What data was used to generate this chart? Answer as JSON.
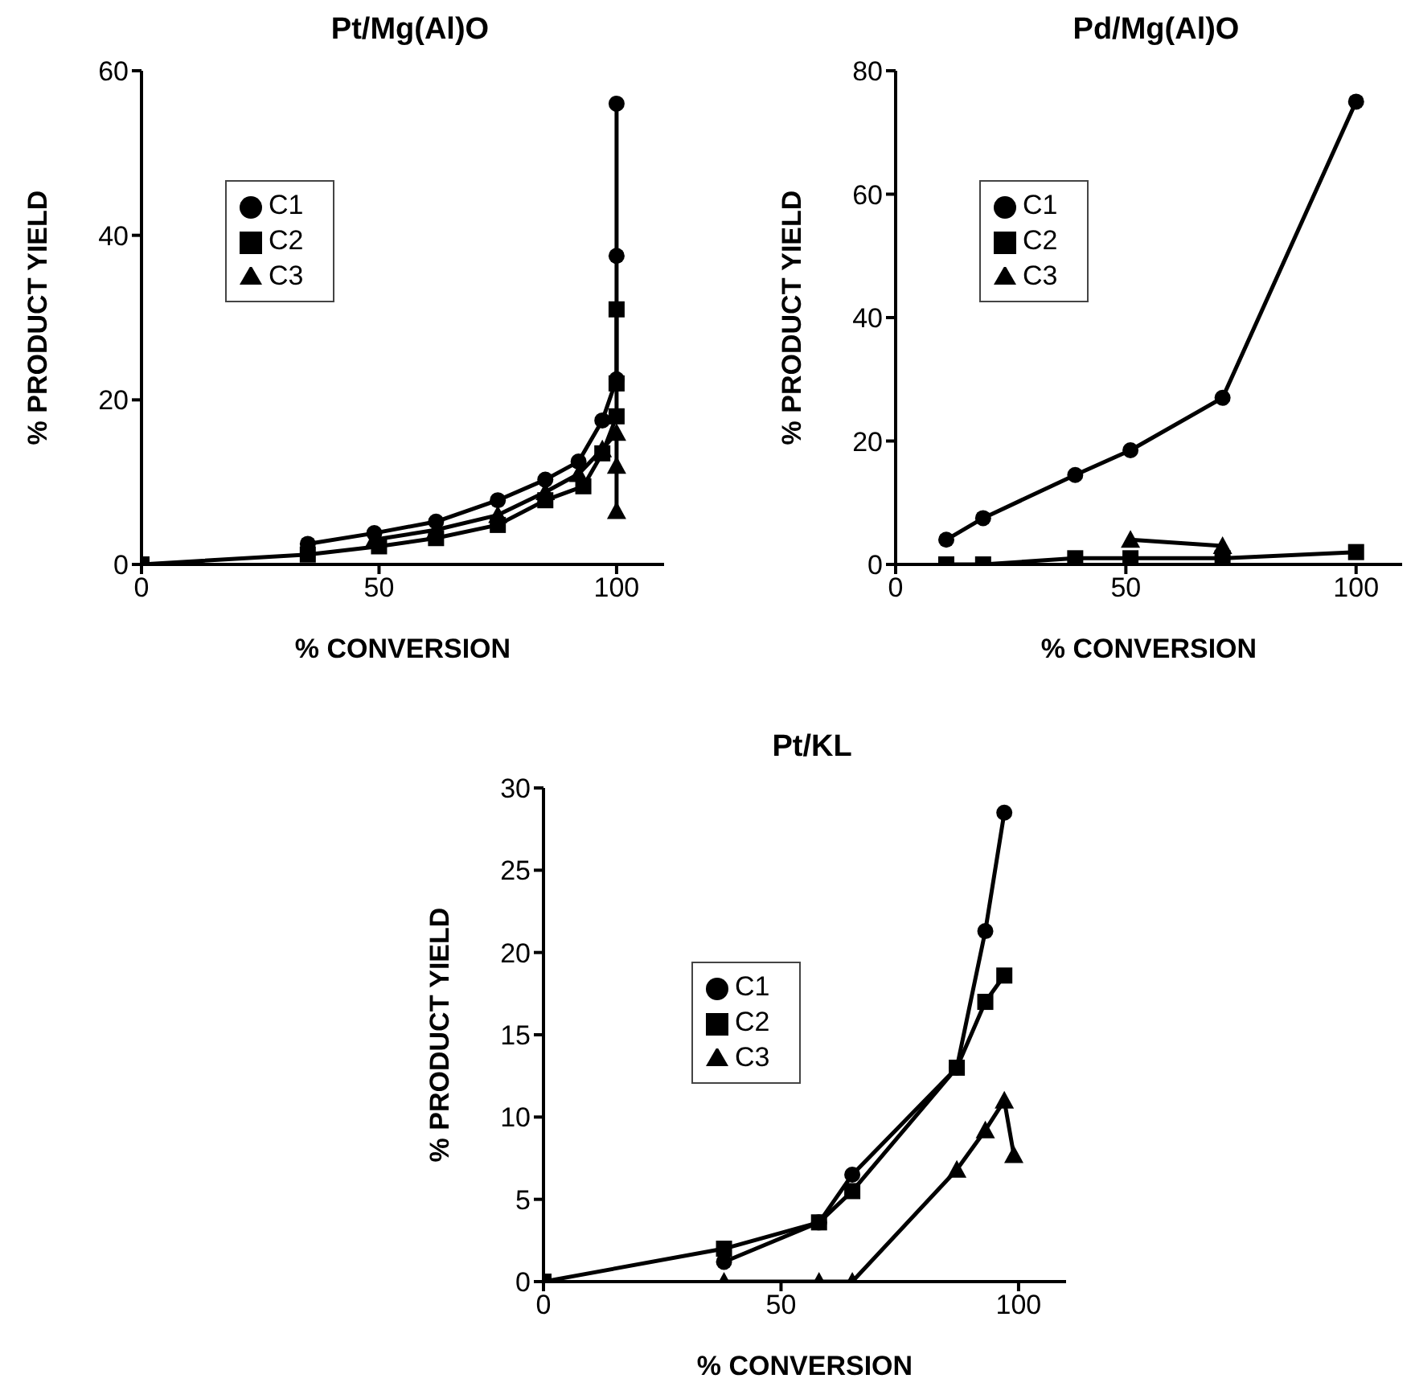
{
  "chart_data": [
    {
      "type": "line",
      "title": "Pt/Mg(Al)O",
      "xlabel": "% CONVERSION",
      "ylabel": "% PRODUCT YIELD",
      "xlim": [
        0,
        110
      ],
      "xticks": [
        0,
        50,
        100
      ],
      "ylim": [
        0,
        60
      ],
      "yticks": [
        0,
        20,
        40,
        60
      ],
      "legend": "top left",
      "line_style": "solid",
      "series": [
        {
          "name": "C1",
          "color": "#000000",
          "marker": "circle",
          "x": [
            35,
            49,
            62,
            75,
            85,
            92,
            97,
            100,
            100,
            100
          ],
          "values": [
            2.5,
            3.8,
            5.2,
            7.8,
            10.3,
            12.5,
            17.5,
            22.5,
            37.5,
            56
          ]
        },
        {
          "name": "C2",
          "color": "#000000",
          "marker": "square",
          "x": [
            0,
            35,
            50,
            62,
            75,
            85,
            93,
            97,
            100,
            100,
            100
          ],
          "values": [
            0,
            1.2,
            2.2,
            3.2,
            4.8,
            7.8,
            9.5,
            13.5,
            18,
            22,
            31
          ]
        },
        {
          "name": "C3",
          "color": "#000000",
          "marker": "triangle",
          "x": [
            49,
            62,
            75,
            85,
            92,
            97,
            100,
            100,
            100
          ],
          "values": [
            3,
            4.2,
            6,
            8.8,
            11,
            14,
            16,
            12,
            6.5
          ]
        }
      ]
    },
    {
      "type": "line",
      "title": "Pd/Mg(Al)O",
      "xlabel": "% CONVERSION",
      "ylabel": "% PRODUCT YIELD",
      "xlim": [
        0,
        110
      ],
      "xticks": [
        0,
        50,
        100
      ],
      "ylim": [
        0,
        80
      ],
      "yticks": [
        0,
        20,
        40,
        60,
        80
      ],
      "legend": "top left",
      "line_style": "solid",
      "series": [
        {
          "name": "C1",
          "color": "#000000",
          "marker": "circle",
          "x": [
            11,
            19,
            39,
            51,
            71,
            100
          ],
          "values": [
            4,
            7.5,
            14.5,
            18.5,
            27,
            75
          ]
        },
        {
          "name": "C2",
          "color": "#000000",
          "marker": "square",
          "x": [
            11,
            19,
            39,
            51,
            71,
            100
          ],
          "values": [
            0,
            0,
            1,
            1,
            1,
            2
          ]
        },
        {
          "name": "C3",
          "color": "#000000",
          "marker": "triangle",
          "x": [
            51,
            71
          ],
          "values": [
            4,
            3
          ]
        }
      ]
    },
    {
      "type": "line",
      "title": "Pt/KL",
      "xlabel": "% CONVERSION",
      "ylabel": "% PRODUCT YIELD",
      "xlim": [
        0,
        110
      ],
      "xticks": [
        0,
        50,
        100
      ],
      "ylim": [
        0,
        30
      ],
      "yticks": [
        0,
        5,
        10,
        15,
        20,
        25,
        30
      ],
      "legend": "top",
      "line_style": "solid",
      "series": [
        {
          "name": "C1",
          "color": "#000000",
          "marker": "circle",
          "x": [
            38,
            58,
            65,
            87,
            93,
            97
          ],
          "values": [
            1.2,
            3.6,
            6.5,
            13,
            21.3,
            28.5
          ]
        },
        {
          "name": "C2",
          "color": "#000000",
          "marker": "square",
          "x": [
            0,
            38,
            58,
            65,
            87,
            93,
            97
          ],
          "values": [
            0,
            2,
            3.6,
            5.5,
            13,
            17,
            18.6
          ]
        },
        {
          "name": "C3",
          "color": "#000000",
          "marker": "triangle",
          "x": [
            38,
            58,
            65,
            87,
            93,
            97,
            99
          ],
          "values": [
            0,
            0,
            0,
            6.8,
            9.2,
            11,
            7.7
          ]
        }
      ]
    }
  ]
}
